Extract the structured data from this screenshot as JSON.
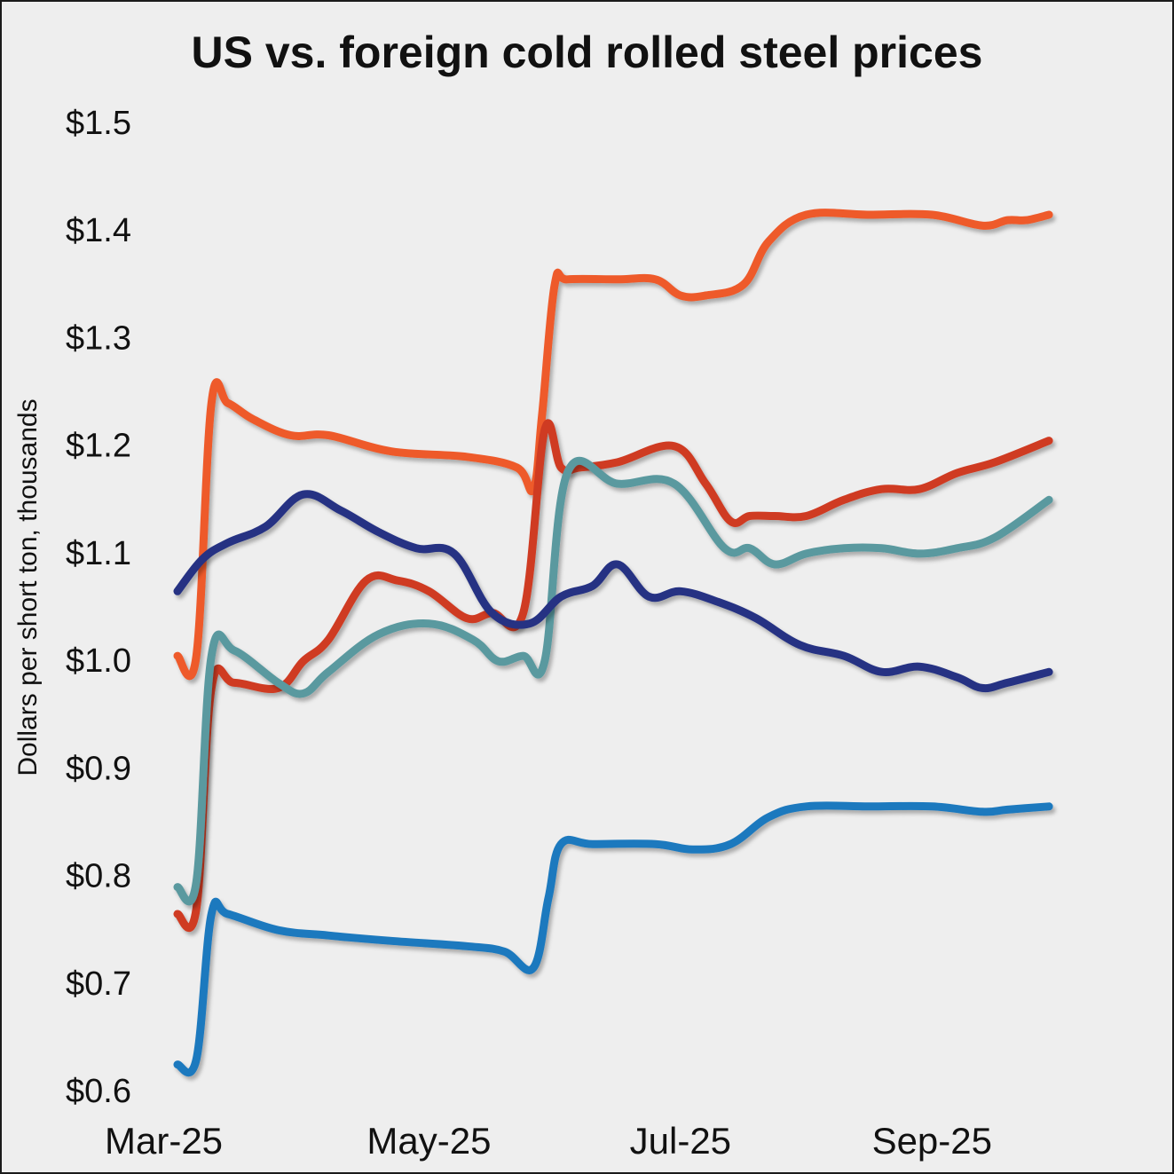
{
  "chart_data": {
    "type": "line",
    "title": "US vs. foreign cold rolled steel prices",
    "xlabel": "",
    "ylabel": "Dollars per short ton, thousands",
    "xlim": [
      0,
      7.0
    ],
    "ylim": [
      0.6,
      1.5
    ],
    "yticks": [
      0.6,
      0.7,
      0.8,
      0.9,
      1.0,
      1.1,
      1.2,
      1.3,
      1.4,
      1.5
    ],
    "ytick_labels": [
      "$0.6",
      "$0.7",
      "$0.8",
      "$0.9",
      "$1.0",
      "$1.1",
      "$1.2",
      "$1.3",
      "$1.4",
      "$1.5"
    ],
    "xticks": [
      0,
      2,
      4,
      6
    ],
    "xtick_labels": [
      "Mar-25",
      "May-25",
      "Jul-25",
      "Sep-25"
    ],
    "grid": false,
    "legend": "none",
    "series": [
      {
        "name": "orange",
        "color": "#ee5a2a",
        "x": [
          0,
          0.15,
          0.27,
          0.4,
          0.6,
          0.9,
          1.2,
          1.7,
          2.3,
          2.7,
          2.83,
          2.9,
          3.0,
          3.1,
          3.5,
          3.8,
          4.0,
          4.2,
          4.5,
          4.7,
          5.0,
          5.5,
          6.0,
          6.4,
          6.6,
          6.75,
          6.93
        ],
        "y": [
          1.005,
          1.005,
          1.24,
          1.24,
          1.225,
          1.21,
          1.21,
          1.195,
          1.19,
          1.18,
          1.16,
          1.23,
          1.35,
          1.355,
          1.355,
          1.355,
          1.34,
          1.34,
          1.35,
          1.39,
          1.415,
          1.415,
          1.415,
          1.405,
          1.41,
          1.41,
          1.415
        ]
      },
      {
        "name": "red",
        "color": "#cf3a22",
        "x": [
          0,
          0.15,
          0.27,
          0.45,
          0.8,
          1.0,
          1.2,
          1.5,
          1.75,
          2.0,
          2.3,
          2.5,
          2.75,
          2.92,
          3.05,
          3.2,
          3.5,
          3.95,
          4.2,
          4.4,
          4.55,
          4.75,
          5.0,
          5.3,
          5.6,
          5.9,
          6.2,
          6.5,
          6.93
        ],
        "y": [
          0.765,
          0.77,
          0.975,
          0.98,
          0.975,
          1.0,
          1.02,
          1.075,
          1.075,
          1.065,
          1.04,
          1.045,
          1.045,
          1.215,
          1.18,
          1.18,
          1.185,
          1.2,
          1.165,
          1.13,
          1.135,
          1.135,
          1.135,
          1.15,
          1.16,
          1.16,
          1.175,
          1.185,
          1.205
        ]
      },
      {
        "name": "teal",
        "color": "#5a999f",
        "x": [
          0,
          0.15,
          0.27,
          0.45,
          0.8,
          1.0,
          1.2,
          1.6,
          2.0,
          2.35,
          2.55,
          2.75,
          2.92,
          3.1,
          3.5,
          3.95,
          4.35,
          4.55,
          4.75,
          5.0,
          5.3,
          5.6,
          5.9,
          6.2,
          6.5,
          6.93
        ],
        "y": [
          0.79,
          0.795,
          1.005,
          1.01,
          0.98,
          0.97,
          0.99,
          1.025,
          1.035,
          1.02,
          1.0,
          1.005,
          1.0,
          1.175,
          1.165,
          1.165,
          1.105,
          1.105,
          1.09,
          1.1,
          1.105,
          1.105,
          1.1,
          1.105,
          1.115,
          1.15
        ]
      },
      {
        "name": "navy",
        "color": "#253383",
        "x": [
          0,
          0.2,
          0.4,
          0.7,
          1.0,
          1.3,
          1.6,
          1.9,
          2.2,
          2.5,
          2.8,
          3.05,
          3.3,
          3.5,
          3.75,
          4.0,
          4.3,
          4.6,
          4.95,
          5.3,
          5.6,
          5.9,
          6.2,
          6.4,
          6.6,
          6.93
        ],
        "y": [
          1.065,
          1.095,
          1.11,
          1.125,
          1.155,
          1.14,
          1.12,
          1.105,
          1.1,
          1.045,
          1.035,
          1.06,
          1.07,
          1.09,
          1.06,
          1.065,
          1.055,
          1.04,
          1.015,
          1.005,
          0.99,
          0.995,
          0.985,
          0.975,
          0.98,
          0.99
        ]
      },
      {
        "name": "blue",
        "color": "#1f79be",
        "x": [
          0,
          0.15,
          0.27,
          0.4,
          0.8,
          1.2,
          1.7,
          2.3,
          2.6,
          2.83,
          2.95,
          3.05,
          3.3,
          3.8,
          4.1,
          4.4,
          4.7,
          5.0,
          5.5,
          6.0,
          6.4,
          6.6,
          6.93
        ],
        "y": [
          0.625,
          0.63,
          0.765,
          0.765,
          0.75,
          0.745,
          0.74,
          0.735,
          0.73,
          0.715,
          0.78,
          0.83,
          0.83,
          0.83,
          0.825,
          0.83,
          0.855,
          0.865,
          0.865,
          0.865,
          0.86,
          0.862,
          0.865
        ]
      }
    ]
  }
}
